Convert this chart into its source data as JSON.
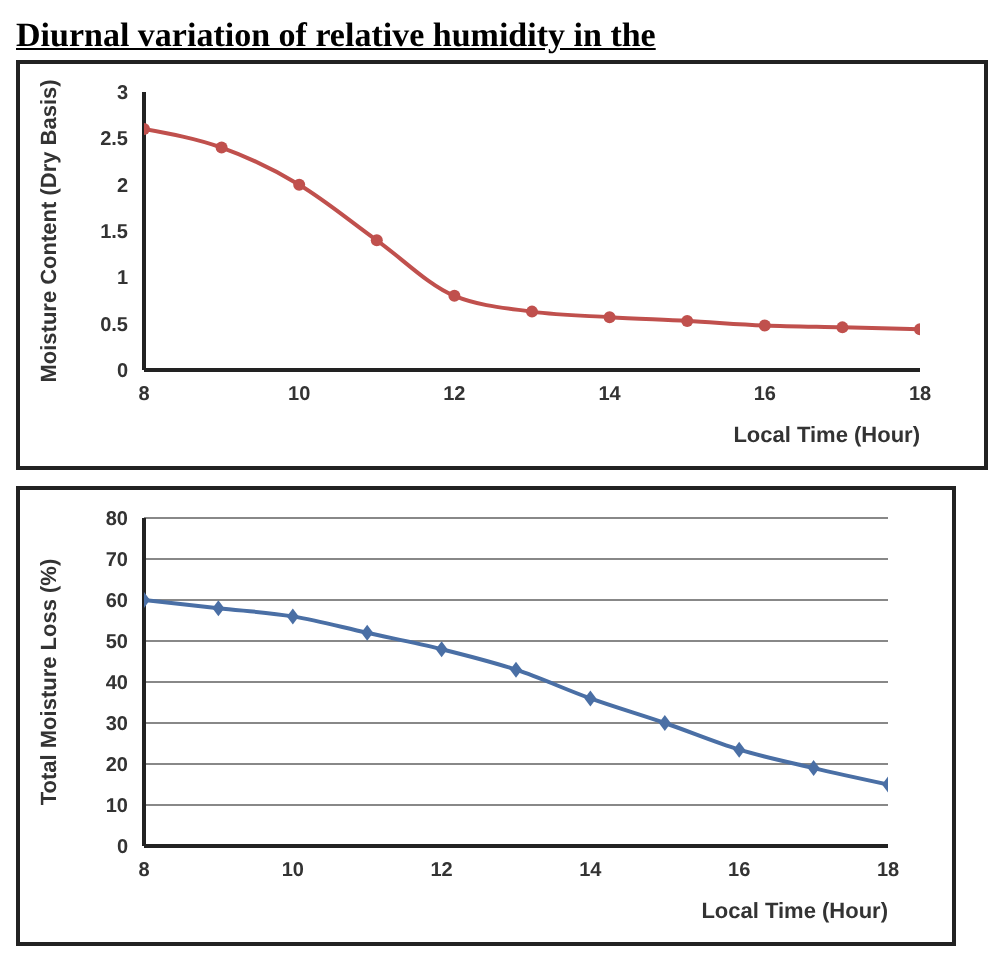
{
  "chart_data": [
    {
      "type": "line",
      "title": "Diurnal variation of relative humidity in the",
      "xlabel": "Local Time (Hour)",
      "ylabel": "Moisture Content (Dry Basis)",
      "x": [
        8,
        9,
        10,
        11,
        12,
        13,
        14,
        15,
        16,
        17,
        18
      ],
      "series": [
        {
          "color": "#c0504d",
          "values": [
            2.6,
            2.4,
            2.0,
            1.4,
            0.8,
            0.63,
            0.57,
            0.53,
            0.48,
            0.46,
            0.44
          ]
        }
      ],
      "xlim": [
        8,
        18
      ],
      "xticks": [
        8,
        10,
        12,
        14,
        16,
        18
      ],
      "ylim": [
        0,
        3
      ],
      "yticks": [
        0,
        0.5,
        1,
        1.5,
        2,
        2.5,
        3
      ],
      "grid": false,
      "marker": "circle",
      "line_style": "solid"
    },
    {
      "type": "line",
      "xlabel": "Local Time (Hour)",
      "ylabel": "Total Moisture Loss (%)",
      "x": [
        8,
        9,
        10,
        11,
        12,
        13,
        14,
        15,
        16,
        17,
        18
      ],
      "series": [
        {
          "color": "#4a6fa5",
          "values": [
            60,
            58,
            56,
            52,
            48,
            43,
            36,
            30,
            23.5,
            19,
            15
          ]
        }
      ],
      "xlim": [
        8,
        18
      ],
      "xticks": [
        8,
        10,
        12,
        14,
        16,
        18
      ],
      "ylim": [
        0,
        80
      ],
      "yticks": [
        0,
        10,
        20,
        30,
        40,
        50,
        60,
        70,
        80
      ],
      "grid": "y",
      "marker": "diamond",
      "line_style": "solid"
    }
  ]
}
